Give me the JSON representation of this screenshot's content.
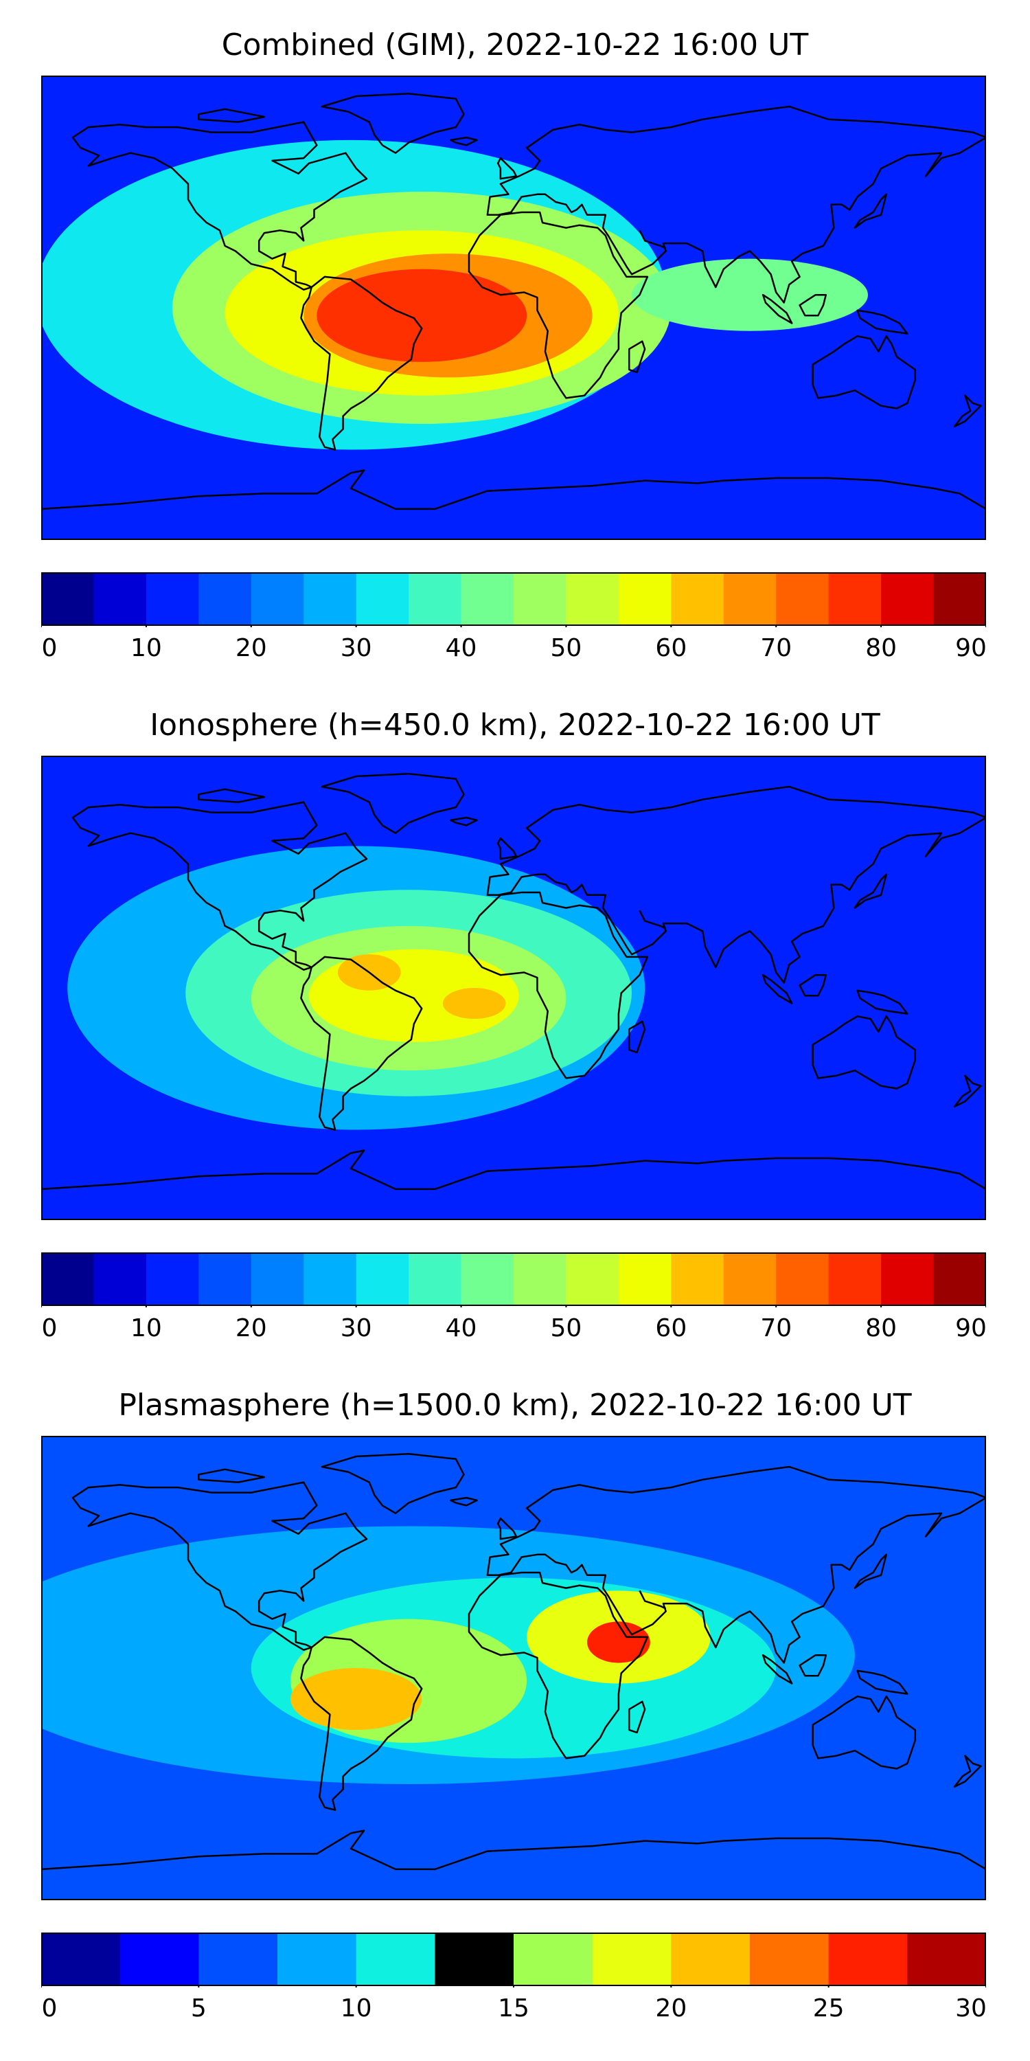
{
  "chart_data": [
    {
      "type": "heatmap",
      "title": "Combined (GIM), 2022-10-22 16:00 UT",
      "colorbar": {
        "ticks": [
          "0",
          "10",
          "20",
          "30",
          "40",
          "50",
          "60",
          "70",
          "80",
          "90"
        ],
        "levels": [
          0,
          5,
          10,
          15,
          20,
          25,
          30,
          35,
          40,
          45,
          50,
          55,
          60,
          65,
          70,
          75,
          80,
          85,
          90
        ],
        "vmin": 0,
        "vmax": 90,
        "colors": [
          "#00008f",
          "#0000d6",
          "#0020ff",
          "#0050ff",
          "#0080ff",
          "#00b0ff",
          "#10e8f0",
          "#40f8c0",
          "#70ff90",
          "#a0ff60",
          "#c8ff30",
          "#f0ff00",
          "#ffc000",
          "#ff9000",
          "#ff6000",
          "#ff3000",
          "#e00000",
          "#9a0000"
        ]
      },
      "features": [
        {
          "shape": "ellipse",
          "lon": -62,
          "lat": 5,
          "rx": 120,
          "ry": 60,
          "value": 30
        },
        {
          "shape": "ellipse",
          "lon": -35,
          "lat": 0,
          "rx": 95,
          "ry": 45,
          "value": 45
        },
        {
          "shape": "ellipse",
          "lon": -35,
          "lat": -2,
          "rx": 75,
          "ry": 32,
          "value": 58
        },
        {
          "shape": "ellipse",
          "lon": -25,
          "lat": -3,
          "rx": 55,
          "ry": 24,
          "value": 68
        },
        {
          "shape": "ellipse",
          "lon": -35,
          "lat": -3,
          "rx": 40,
          "ry": 18,
          "value": 78
        },
        {
          "shape": "ellipse",
          "lon": 90,
          "lat": 5,
          "rx": 45,
          "ry": 14,
          "value": 40
        }
      ]
    },
    {
      "type": "heatmap",
      "title": "Ionosphere  (h=450.0 km), 2022-10-22 16:00 UT",
      "colorbar": {
        "ticks": [
          "0",
          "10",
          "20",
          "30",
          "40",
          "50",
          "60",
          "70",
          "80",
          "90"
        ],
        "levels": [
          0,
          5,
          10,
          15,
          20,
          25,
          30,
          35,
          40,
          45,
          50,
          55,
          60,
          65,
          70,
          75,
          80,
          85,
          90
        ],
        "vmin": 0,
        "vmax": 90,
        "colors": [
          "#00008f",
          "#0000d6",
          "#0020ff",
          "#0050ff",
          "#0080ff",
          "#00b0ff",
          "#10e8f0",
          "#40f8c0",
          "#70ff90",
          "#a0ff60",
          "#c8ff30",
          "#f0ff00",
          "#ffc000",
          "#ff9000",
          "#ff6000",
          "#ff3000",
          "#e00000",
          "#9a0000"
        ]
      },
      "features": [
        {
          "shape": "ellipse",
          "lon": -60,
          "lat": 0,
          "rx": 110,
          "ry": 55,
          "value": 25
        },
        {
          "shape": "ellipse",
          "lon": -40,
          "lat": -2,
          "rx": 85,
          "ry": 40,
          "value": 35
        },
        {
          "shape": "ellipse",
          "lon": -40,
          "lat": -4,
          "rx": 60,
          "ry": 28,
          "value": 45
        },
        {
          "shape": "ellipse",
          "lon": -38,
          "lat": -3,
          "rx": 40,
          "ry": 18,
          "value": 55
        },
        {
          "shape": "ellipse",
          "lon": -55,
          "lat": 6,
          "rx": 12,
          "ry": 7,
          "value": 62
        },
        {
          "shape": "ellipse",
          "lon": -15,
          "lat": -6,
          "rx": 12,
          "ry": 6,
          "value": 62
        }
      ]
    },
    {
      "type": "heatmap",
      "title": "Plasmasphere (h=1500.0 km), 2022-10-22 16:00 UT",
      "colorbar": {
        "ticks": [
          "0",
          "5",
          "10",
          "15",
          "20",
          "25",
          "30"
        ],
        "levels": [
          0,
          2.5,
          5,
          7.5,
          10,
          12.5,
          15,
          17.5,
          20,
          22.5,
          25,
          27.5,
          30
        ],
        "vmin": 0,
        "vmax": 30,
        "colors": [
          "#00009a",
          "#0000ff",
          "#0050ff",
          "#00a8ff",
          "#10f0e0",
          "#50ff a0",
          "#a0ff50",
          "#e8ff10",
          "#ffc000",
          "#ff7000",
          "#ff2000",
          "#b00000"
        ]
      },
      "features": [
        {
          "shape": "ellipse",
          "lon": -40,
          "lat": 5,
          "rx": 170,
          "ry": 50,
          "value": 8
        },
        {
          "shape": "ellipse",
          "lon": 0,
          "lat": 0,
          "rx": 100,
          "ry": 35,
          "value": 11
        },
        {
          "shape": "ellipse",
          "lon": -40,
          "lat": -5,
          "rx": 45,
          "ry": 24,
          "value": 16
        },
        {
          "shape": "ellipse",
          "lon": -60,
          "lat": -12,
          "rx": 25,
          "ry": 12,
          "value": 21
        },
        {
          "shape": "ellipse",
          "lon": 40,
          "lat": 12,
          "rx": 35,
          "ry": 18,
          "value": 18
        },
        {
          "shape": "ellipse",
          "lon": 40,
          "lat": 10,
          "rx": 12,
          "ry": 8,
          "value": 26
        }
      ]
    }
  ],
  "ui": {
    "accent_colors": {
      "frame": "#000000",
      "coastline": "#000000"
    }
  }
}
